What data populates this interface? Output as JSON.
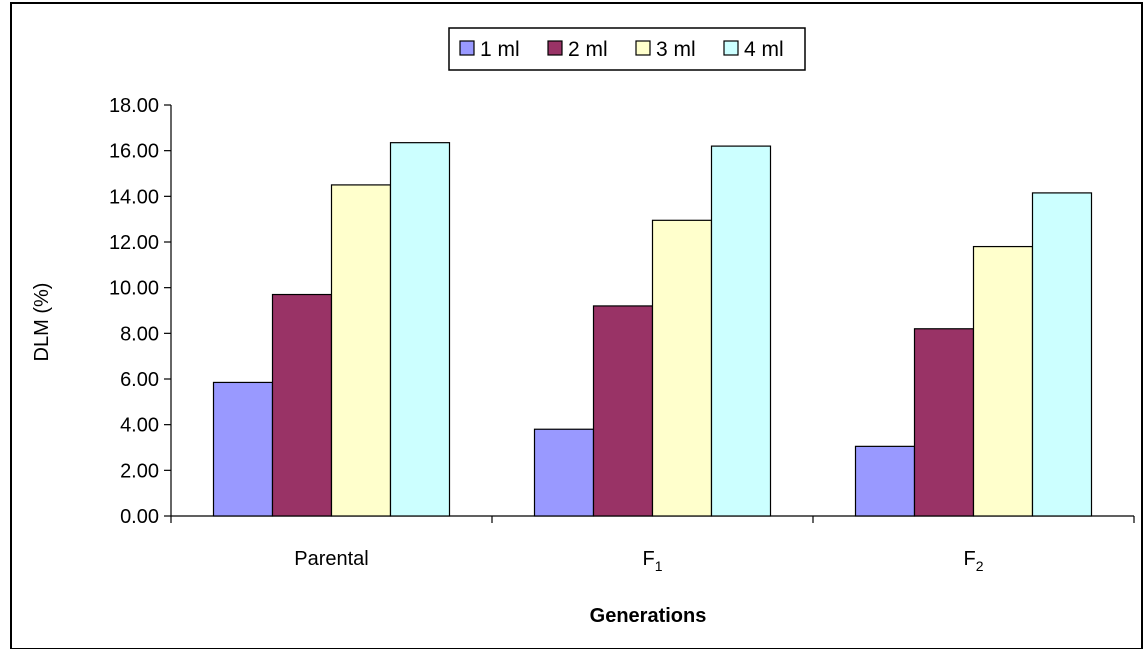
{
  "chart_data": {
    "type": "bar",
    "categories": [
      {
        "main": "Parental",
        "sub": ""
      },
      {
        "main": "F",
        "sub": "1"
      },
      {
        "main": "F",
        "sub": "2"
      }
    ],
    "series": [
      {
        "name": "1 ml",
        "color": "#9999ff",
        "values": [
          5.85,
          3.8,
          3.05
        ]
      },
      {
        "name": "2 ml",
        "color": "#993366",
        "values": [
          9.7,
          9.2,
          8.2
        ]
      },
      {
        "name": "3 ml",
        "color": "#ffffcc",
        "values": [
          14.5,
          12.95,
          11.8
        ]
      },
      {
        "name": "4 ml",
        "color": "#ccffff",
        "values": [
          16.35,
          16.2,
          14.15
        ]
      }
    ],
    "xlabel": "Generations",
    "ylabel": "DLM (%)",
    "ylim": [
      0,
      18
    ],
    "yticks": [
      "0.00",
      "2.00",
      "4.00",
      "6.00",
      "8.00",
      "10.00",
      "12.00",
      "14.00",
      "16.00",
      "18.00"
    ],
    "legend_position": "top-center",
    "grid": false
  }
}
